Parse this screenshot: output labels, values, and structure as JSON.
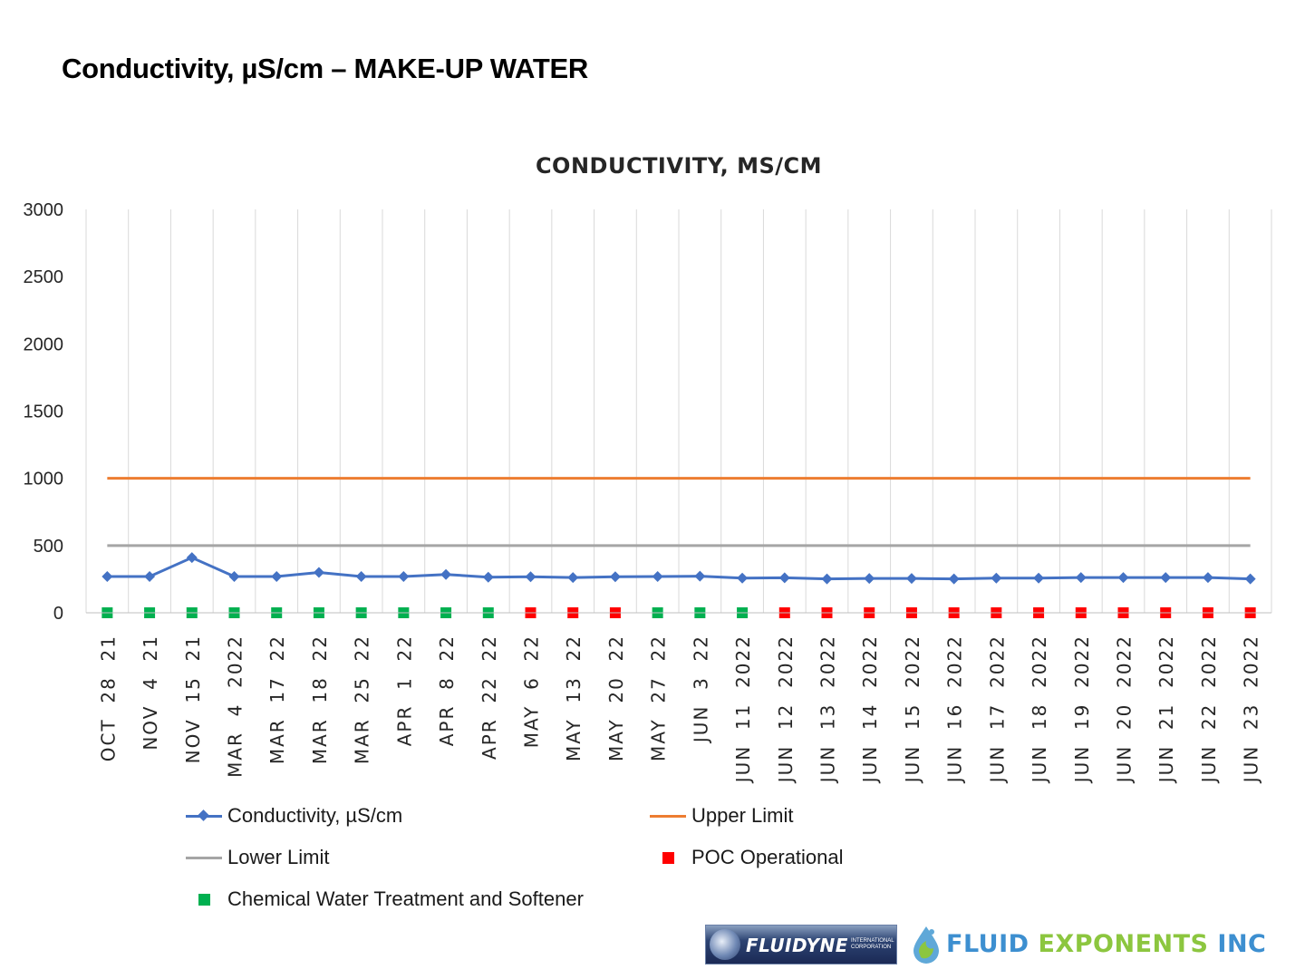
{
  "page_title": "Conductivity, µS/cm – MAKE-UP WATER",
  "colors": {
    "conductivity": "#4472C4",
    "upper_limit": "#ED7D31",
    "lower_limit": "#A5A5A5",
    "poc_operational": "#FF0000",
    "chemical_treatment": "#00B050"
  },
  "chart_data": {
    "type": "line",
    "title": "CONDUCTIVITY,  MS/CM",
    "xlabel": "",
    "ylabel": "",
    "ylim": [
      0,
      3000
    ],
    "yticks": [
      0,
      500,
      1000,
      1500,
      2000,
      2500,
      3000
    ],
    "grid": "vertical",
    "categories": [
      "OCT 28 21",
      "NOV 4 21",
      "NOV 15 21",
      "MAR 4 2022",
      "MAR 17 22",
      "MAR 18 22",
      "MAR 25 22",
      "APR 1 22",
      "APR 8 22",
      "APR 22 22",
      "MAY 6 22",
      "MAY 13 22",
      "MAY 20 22",
      "MAY 27 22",
      "JUN 3 22",
      "JUN 11 2022",
      "JUN 12 2022",
      "JUN 13 2022",
      "JUN 14 2022",
      "JUN 15 2022",
      "JUN 16 2022",
      "JUN 17 2022",
      "JUN 18 2022",
      "JUN 19 2022",
      "JUN 20 2022",
      "JUN 21 2022",
      "JUN 22 2022",
      "JUN 23 2022"
    ],
    "series": [
      {
        "name": "Conductivity, µS/cm",
        "kind": "line-marker",
        "values": [
          270,
          270,
          410,
          270,
          270,
          300,
          270,
          270,
          285,
          265,
          268,
          262,
          268,
          270,
          272,
          258,
          260,
          252,
          255,
          255,
          252,
          258,
          258,
          262,
          262,
          262,
          262,
          252
        ]
      },
      {
        "name": "Upper Limit",
        "kind": "line",
        "values": [
          1000,
          1000,
          1000,
          1000,
          1000,
          1000,
          1000,
          1000,
          1000,
          1000,
          1000,
          1000,
          1000,
          1000,
          1000,
          1000,
          1000,
          1000,
          1000,
          1000,
          1000,
          1000,
          1000,
          1000,
          1000,
          1000,
          1000,
          1000
        ]
      },
      {
        "name": "Lower Limit",
        "kind": "line",
        "values": [
          500,
          500,
          500,
          500,
          500,
          500,
          500,
          500,
          500,
          500,
          500,
          500,
          500,
          500,
          500,
          500,
          500,
          500,
          500,
          500,
          500,
          500,
          500,
          500,
          500,
          500,
          500,
          500
        ]
      },
      {
        "name": "POC Operational",
        "kind": "marker",
        "values": [
          null,
          null,
          null,
          null,
          null,
          null,
          null,
          null,
          null,
          null,
          0,
          0,
          0,
          null,
          null,
          null,
          0,
          0,
          0,
          0,
          0,
          0,
          0,
          0,
          0,
          0,
          0,
          0
        ]
      },
      {
        "name": "Chemical Water Treatment and Softener",
        "kind": "marker",
        "values": [
          0,
          0,
          0,
          0,
          0,
          0,
          0,
          0,
          0,
          0,
          null,
          null,
          null,
          0,
          0,
          0,
          null,
          null,
          null,
          null,
          null,
          null,
          null,
          null,
          null,
          null,
          null,
          null
        ]
      }
    ],
    "legend": "bottom"
  },
  "logos": {
    "fluidyne": "FLUIDYNE",
    "fluidyne_sub": "INTERNATIONAL CORPORATION",
    "fluid_exponents_1": "FLUID",
    "fluid_exponents_2": "EXPONENTS",
    "fluid_exponents_3": "INC"
  }
}
